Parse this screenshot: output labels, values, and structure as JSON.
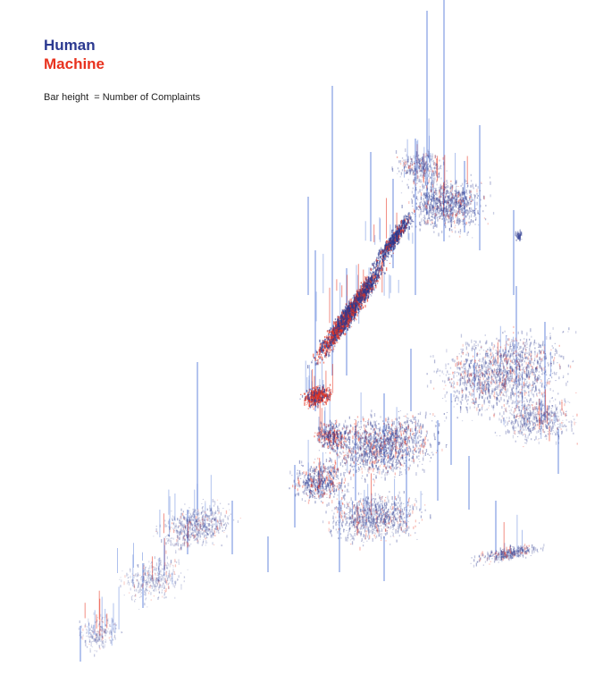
{
  "legend": {
    "items": [
      {
        "label": "Human",
        "color": "#2b3990"
      },
      {
        "label": "Machine",
        "color": "#e8321e"
      }
    ]
  },
  "caption": "Bar height  = Number of Complaints",
  "colors": {
    "human": "#2b3990",
    "machine": "#e8321e",
    "human_bar": "#6f8fe0",
    "background": "#ffffff"
  }
}
